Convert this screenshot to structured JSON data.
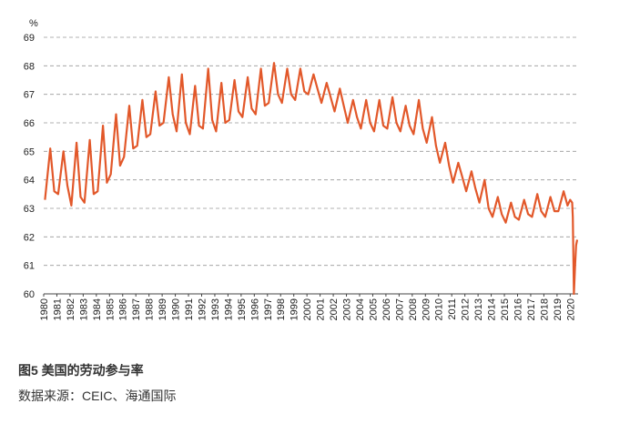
{
  "chart_data": {
    "type": "line",
    "title": "图5  美国的劳动参与率",
    "source": "数据来源：CEIC、海通国际",
    "y_unit": "%",
    "x": [
      1980.1,
      1980.5,
      1980.8,
      1981.1,
      1981.5,
      1981.8,
      1982.1,
      1982.5,
      1982.8,
      1983.1,
      1983.5,
      1983.8,
      1984.1,
      1984.5,
      1984.8,
      1985.1,
      1985.5,
      1985.8,
      1986.1,
      1986.5,
      1986.8,
      1987.1,
      1987.5,
      1987.8,
      1988.1,
      1988.5,
      1988.8,
      1989.1,
      1989.5,
      1989.8,
      1990.1,
      1990.5,
      1990.8,
      1991.1,
      1991.5,
      1991.8,
      1992.1,
      1992.5,
      1992.8,
      1993.1,
      1993.5,
      1993.8,
      1994.1,
      1994.5,
      1994.8,
      1995.1,
      1995.5,
      1995.8,
      1996.1,
      1996.5,
      1996.8,
      1997.1,
      1997.5,
      1997.8,
      1998.1,
      1998.5,
      1998.8,
      1999.1,
      1999.5,
      1999.8,
      2000.1,
      2000.5,
      2000.8,
      2001.1,
      2001.5,
      2001.8,
      2002.1,
      2002.5,
      2002.8,
      2003.1,
      2003.5,
      2003.8,
      2004.1,
      2004.5,
      2004.8,
      2005.1,
      2005.5,
      2005.8,
      2006.1,
      2006.5,
      2006.8,
      2007.1,
      2007.5,
      2007.8,
      2008.1,
      2008.5,
      2008.8,
      2009.1,
      2009.5,
      2009.8,
      2010.1,
      2010.5,
      2010.8,
      2011.1,
      2011.5,
      2011.8,
      2012.1,
      2012.5,
      2012.8,
      2013.1,
      2013.5,
      2013.8,
      2014.1,
      2014.5,
      2014.8,
      2015.1,
      2015.5,
      2015.8,
      2016.1,
      2016.5,
      2016.8,
      2017.1,
      2017.5,
      2017.8,
      2018.1,
      2018.5,
      2018.8,
      2019.1,
      2019.5,
      2019.8,
      2020.0,
      2020.15,
      2020.2,
      2020.28,
      2020.37,
      2020.45,
      2020.53
    ],
    "series": [
      {
        "name": "劳动参与率",
        "color": "#e2582a",
        "values": [
          63.3,
          65.1,
          63.6,
          63.5,
          65.0,
          63.8,
          63.1,
          65.3,
          63.4,
          63.2,
          65.4,
          63.5,
          63.6,
          65.9,
          63.9,
          64.2,
          66.3,
          64.5,
          64.8,
          66.6,
          65.1,
          65.2,
          66.8,
          65.5,
          65.6,
          67.1,
          65.9,
          66.0,
          67.6,
          66.3,
          65.7,
          67.7,
          66.0,
          65.6,
          67.3,
          65.9,
          65.8,
          67.9,
          66.1,
          65.7,
          67.4,
          66.0,
          66.1,
          67.5,
          66.4,
          66.2,
          67.6,
          66.5,
          66.3,
          67.9,
          66.6,
          66.7,
          68.1,
          67.0,
          66.7,
          67.9,
          67.0,
          66.8,
          67.9,
          67.1,
          67.0,
          67.7,
          67.2,
          66.7,
          67.4,
          66.9,
          66.4,
          67.2,
          66.6,
          66.0,
          66.8,
          66.2,
          65.8,
          66.8,
          66.0,
          65.7,
          66.8,
          65.9,
          65.8,
          66.9,
          66.0,
          65.7,
          66.6,
          65.9,
          65.6,
          66.8,
          65.8,
          65.3,
          66.2,
          65.2,
          64.6,
          65.3,
          64.5,
          63.9,
          64.6,
          64.1,
          63.6,
          64.3,
          63.7,
          63.2,
          64.0,
          63.0,
          62.7,
          63.4,
          62.8,
          62.5,
          63.2,
          62.7,
          62.6,
          63.3,
          62.8,
          62.7,
          63.5,
          62.9,
          62.7,
          63.4,
          62.9,
          62.9,
          63.6,
          63.1,
          63.3,
          63.2,
          62.7,
          60.0,
          61.0,
          61.7,
          61.9
        ]
      }
    ],
    "xlim": [
      1980,
      2020.6
    ],
    "xticks": [
      1980,
      1981,
      1982,
      1983,
      1984,
      1985,
      1986,
      1987,
      1988,
      1989,
      1990,
      1991,
      1992,
      1993,
      1994,
      1995,
      1996,
      1997,
      1998,
      1999,
      2000,
      2001,
      2002,
      2003,
      2004,
      2005,
      2006,
      2007,
      2008,
      2009,
      2010,
      2011,
      2012,
      2013,
      2014,
      2015,
      2016,
      2017,
      2018,
      2019,
      2020
    ],
    "ylim": [
      60,
      69
    ],
    "yticks": [
      60,
      61,
      62,
      63,
      64,
      65,
      66,
      67,
      68,
      69
    ],
    "grid": true
  }
}
